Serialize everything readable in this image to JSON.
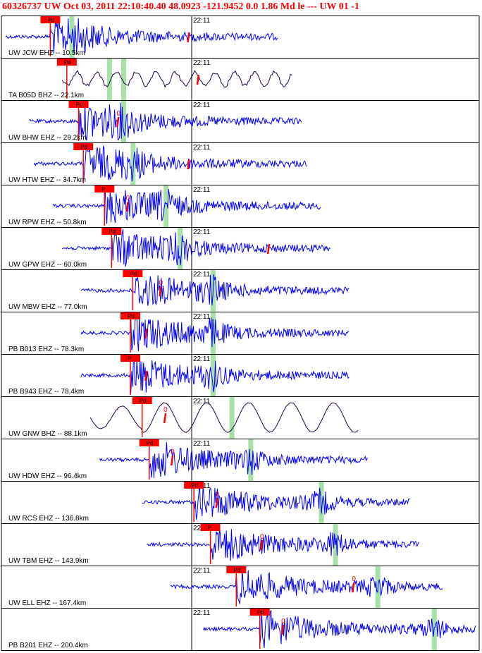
{
  "header": {
    "text": "60326737 UW Oct 03, 2011 22:10:40.40    48.0923 -121.9452  0.0 1.86 Md le --- UW 01  -1"
  },
  "colors": {
    "header_text": "#ff0000",
    "trace_blue": "#0000ff",
    "trace_dark": "#200040",
    "pick_box": "#ff0000",
    "green_band": "#a8e0a8",
    "panel_border": "#000000"
  },
  "chart_data": {
    "type": "line",
    "title": "60326737 UW Oct 03, 2011 22:10:40.40    48.0923 -121.9452  0.0 1.86 Md le --- UW 01  -1",
    "time_tick_label": "22:11",
    "legend": "none",
    "grid": false,
    "traces": [
      {
        "label": "UW JCW EHZ -- 10.5km",
        "pick": "Pd",
        "mark": "",
        "pick_t": 0.095,
        "mark_t": 0.39,
        "green": [
          0.14
        ],
        "start": 0.0,
        "end": 0.58,
        "color": "blue",
        "style": "burst"
      },
      {
        "label": "TA B05D BHZ -- 22.1km",
        "pick": "Pd",
        "mark": "",
        "pick_t": 0.13,
        "mark_t": 0.41,
        "green": [
          0.22,
          0.25
        ],
        "start": 0.12,
        "end": 0.61,
        "color": "dark",
        "style": "slow"
      },
      {
        "label": "UW BHW EHZ -- 29.2km",
        "pick": "Pd",
        "mark": "0",
        "pick_t": 0.155,
        "mark_t": 0.24,
        "green": [
          0.25
        ],
        "start": 0.05,
        "end": 0.63,
        "color": "blue",
        "style": "burst"
      },
      {
        "label": "UW HTW EHZ -- 34.7km",
        "pick": "Pd",
        "mark": "",
        "pick_t": 0.165,
        "mark_t": 0.39,
        "green": [
          0.27
        ],
        "start": 0.06,
        "end": 0.64,
        "color": "blue",
        "style": "burst"
      },
      {
        "label": "UW RPW EHZ -- 50.8km",
        "pick": "P",
        "mark": "0",
        "pick_t": 0.21,
        "mark_t": 0.26,
        "green": [
          0.34
        ],
        "start": 0.1,
        "end": 0.67,
        "color": "blue",
        "style": "burst"
      },
      {
        "label": "UW GPW EHZ -- 60.0km",
        "pick": "Pd",
        "mark": "",
        "pick_t": 0.225,
        "mark_t": 0.56,
        "green": [
          0.37
        ],
        "start": 0.12,
        "end": 0.69,
        "color": "blue",
        "style": "burst"
      },
      {
        "label": "UW MBW EHZ -- 77.0km",
        "pick": "Pd",
        "mark": "0",
        "pick_t": 0.27,
        "mark_t": 0.33,
        "green": [
          0.44
        ],
        "start": 0.16,
        "end": 0.73,
        "color": "blue",
        "style": "burst"
      },
      {
        "label": "PB B013 EHZ -- 78.3km",
        "pick": "Pd",
        "mark": "",
        "pick_t": 0.265,
        "mark_t": 0.3,
        "green": [
          0.44
        ],
        "start": 0.16,
        "end": 0.73,
        "color": "blue",
        "style": "burst"
      },
      {
        "label": "PB B943 EHZ -- 78.4km",
        "pick": "P",
        "mark": "",
        "pick_t": 0.265,
        "mark_t": 0.3,
        "green": [
          0.44
        ],
        "start": 0.16,
        "end": 0.73,
        "color": "blue",
        "style": "burst"
      },
      {
        "label": "UW GNW BHZ -- 88.1km",
        "pick": "Pd",
        "mark": "0",
        "pick_t": 0.29,
        "mark_t": 0.34,
        "green": [
          0.48
        ],
        "start": 0.18,
        "end": 0.75,
        "color": "dark",
        "style": "slow"
      },
      {
        "label": "UW HDW EHZ -- 96.4km",
        "pick": "Pd",
        "mark": "0",
        "pick_t": 0.305,
        "mark_t": 0.355,
        "green": [
          0.52
        ],
        "start": 0.2,
        "end": 0.77,
        "color": "blue",
        "style": "burst"
      },
      {
        "label": "UW RCS EHZ -- 136.8km",
        "pick": "Pd",
        "mark": "0",
        "pick_t": 0.4,
        "mark_t": 0.45,
        "green": [
          0.67
        ],
        "start": 0.29,
        "end": 0.86,
        "color": "blue",
        "style": "burst"
      },
      {
        "label": "UW TBM EHZ -- 143.9km",
        "pick": "P",
        "mark": "0",
        "pick_t": 0.435,
        "mark_t": 0.545,
        "green": [
          0.7
        ],
        "start": 0.3,
        "end": 0.88,
        "color": "blue",
        "style": "burst"
      },
      {
        "label": "UW ELL EHZ -- 167.4km",
        "pick": "Pd",
        "mark": "0",
        "pick_t": 0.49,
        "mark_t": 0.74,
        "green": [
          0.79
        ],
        "start": 0.35,
        "end": 0.93,
        "color": "blue",
        "style": "burst"
      },
      {
        "label": "PB B201 EHZ -- 200.4km",
        "pick": "Pd",
        "mark": "0",
        "pick_t": 0.54,
        "mark_t": 0.59,
        "green": [
          0.91
        ],
        "start": 0.42,
        "end": 1.0,
        "color": "blue",
        "style": "burst"
      }
    ]
  }
}
